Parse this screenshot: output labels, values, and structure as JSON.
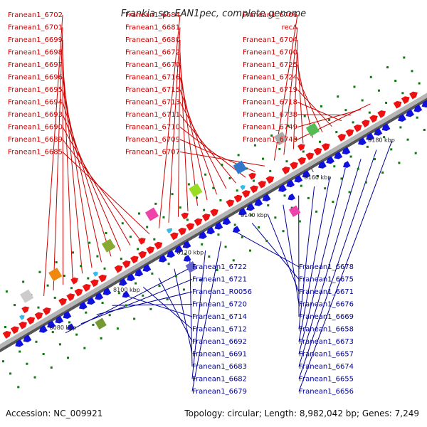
{
  "title": "Frankia sp. EAN1pec, complete genome",
  "footer": {
    "accession": "Accession: NC_009921",
    "summary": "Topology: circular; Length: 8,982,042 bp; Genes: 7,249"
  },
  "colors": {
    "forward": "#ee1111",
    "reverse": "#1111dd",
    "rna": "#33bbee",
    "backbone": "#999999",
    "tick": "#117711"
  },
  "ticks": [
    "8080 kbp",
    "8100 kbp",
    "8120 kbp",
    "8140 kbp",
    "8160 kbp",
    "8180 kbp"
  ],
  "labels": {
    "top": [
      "Franean1_6702",
      "Franean1_6701",
      "Franean1_6699",
      "Franean1_6698",
      "Franean1_6697",
      "Franean1_6696",
      "Franean1_6695",
      "Franean1_6694",
      "Franean1_6693",
      "Franean1_6690",
      "Franean1_6689",
      "Franean1_6685",
      "Franean1_6684",
      "Franean1_6681",
      "Franean1_6680",
      "Franean1_6672",
      "Franean1_6670",
      "Franean1_6716",
      "Franean1_6715",
      "Franean1_6713",
      "Franean1_6711",
      "Franean1_6710",
      "Franean1_6709",
      "Franean1_6707",
      "Franean1_6706",
      "recA",
      "Franean1_6704",
      "Franean1_6700",
      "Franean1_6725",
      "Franean1_6724",
      "Franean1_6719",
      "Franean1_6718",
      "Franean1_6738",
      "Franean1_6749",
      "Franean1_6748"
    ],
    "bottom": [
      "Franean1_6722",
      "Franean1_6721",
      "Franean1_R0056",
      "Franean1_6720",
      "Franean1_6714",
      "Franean1_6712",
      "Franean1_6692",
      "Franean1_6691",
      "Franean1_6683",
      "Franean1_6682",
      "Franean1_6679",
      "Franean1_6678",
      "Franean1_6675",
      "Franean1_6671",
      "Franean1_6676",
      "Franean1_6669",
      "Franean1_6658",
      "Franean1_6673",
      "Franean1_6657",
      "Franean1_6674",
      "Franean1_6655",
      "Franean1_6656"
    ]
  }
}
